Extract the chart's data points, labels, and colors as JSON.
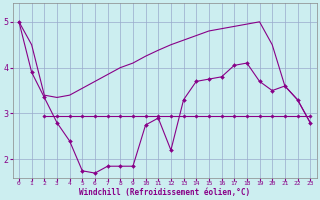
{
  "background_color": "#cceef0",
  "grid_color": "#99aacc",
  "line_color": "#880088",
  "xlabel": "Windchill (Refroidissement éolien,°C)",
  "x_ticks": [
    0,
    1,
    2,
    3,
    4,
    5,
    6,
    7,
    8,
    9,
    10,
    11,
    12,
    13,
    14,
    15,
    16,
    17,
    18,
    19,
    20,
    21,
    22,
    23
  ],
  "y_ticks": [
    2,
    3,
    4,
    5
  ],
  "ylim": [
    1.6,
    5.4
  ],
  "xlim": [
    -0.5,
    23.5
  ],
  "zigzag_x": [
    0,
    1,
    2,
    3,
    4,
    5,
    6,
    7,
    8,
    9,
    10,
    11,
    12,
    13,
    14,
    15,
    16,
    17,
    18,
    19,
    20,
    21,
    22,
    23
  ],
  "zigzag_y": [
    5.0,
    3.9,
    3.35,
    2.8,
    2.4,
    1.75,
    1.7,
    1.85,
    1.85,
    1.85,
    2.75,
    2.9,
    2.2,
    3.3,
    3.7,
    3.75,
    3.8,
    4.05,
    4.1,
    3.7,
    3.5,
    3.6,
    3.3,
    2.8
  ],
  "curve_x": [
    0,
    1,
    2,
    3,
    4,
    5,
    6,
    7,
    8,
    9,
    10,
    11,
    12,
    13,
    14,
    15,
    16,
    17,
    18,
    19,
    20,
    21,
    22,
    23
  ],
  "curve_y": [
    5.0,
    4.5,
    3.4,
    3.35,
    3.4,
    3.55,
    3.7,
    3.85,
    4.0,
    4.1,
    4.25,
    4.38,
    4.5,
    4.6,
    4.7,
    4.8,
    4.85,
    4.9,
    4.95,
    5.0,
    4.5,
    3.6,
    3.3,
    2.8
  ],
  "flat_x": [
    2,
    3,
    4,
    5,
    6,
    7,
    8,
    9,
    10,
    11,
    12,
    13,
    14,
    15,
    16,
    17,
    18,
    19,
    20,
    21,
    22,
    23
  ],
  "flat_y": [
    2.95,
    2.95,
    2.95,
    2.95,
    2.95,
    2.95,
    2.95,
    2.95,
    2.95,
    2.95,
    2.95,
    2.95,
    2.95,
    2.95,
    2.95,
    2.95,
    2.95,
    2.95,
    2.95,
    2.95,
    2.95,
    2.95
  ]
}
